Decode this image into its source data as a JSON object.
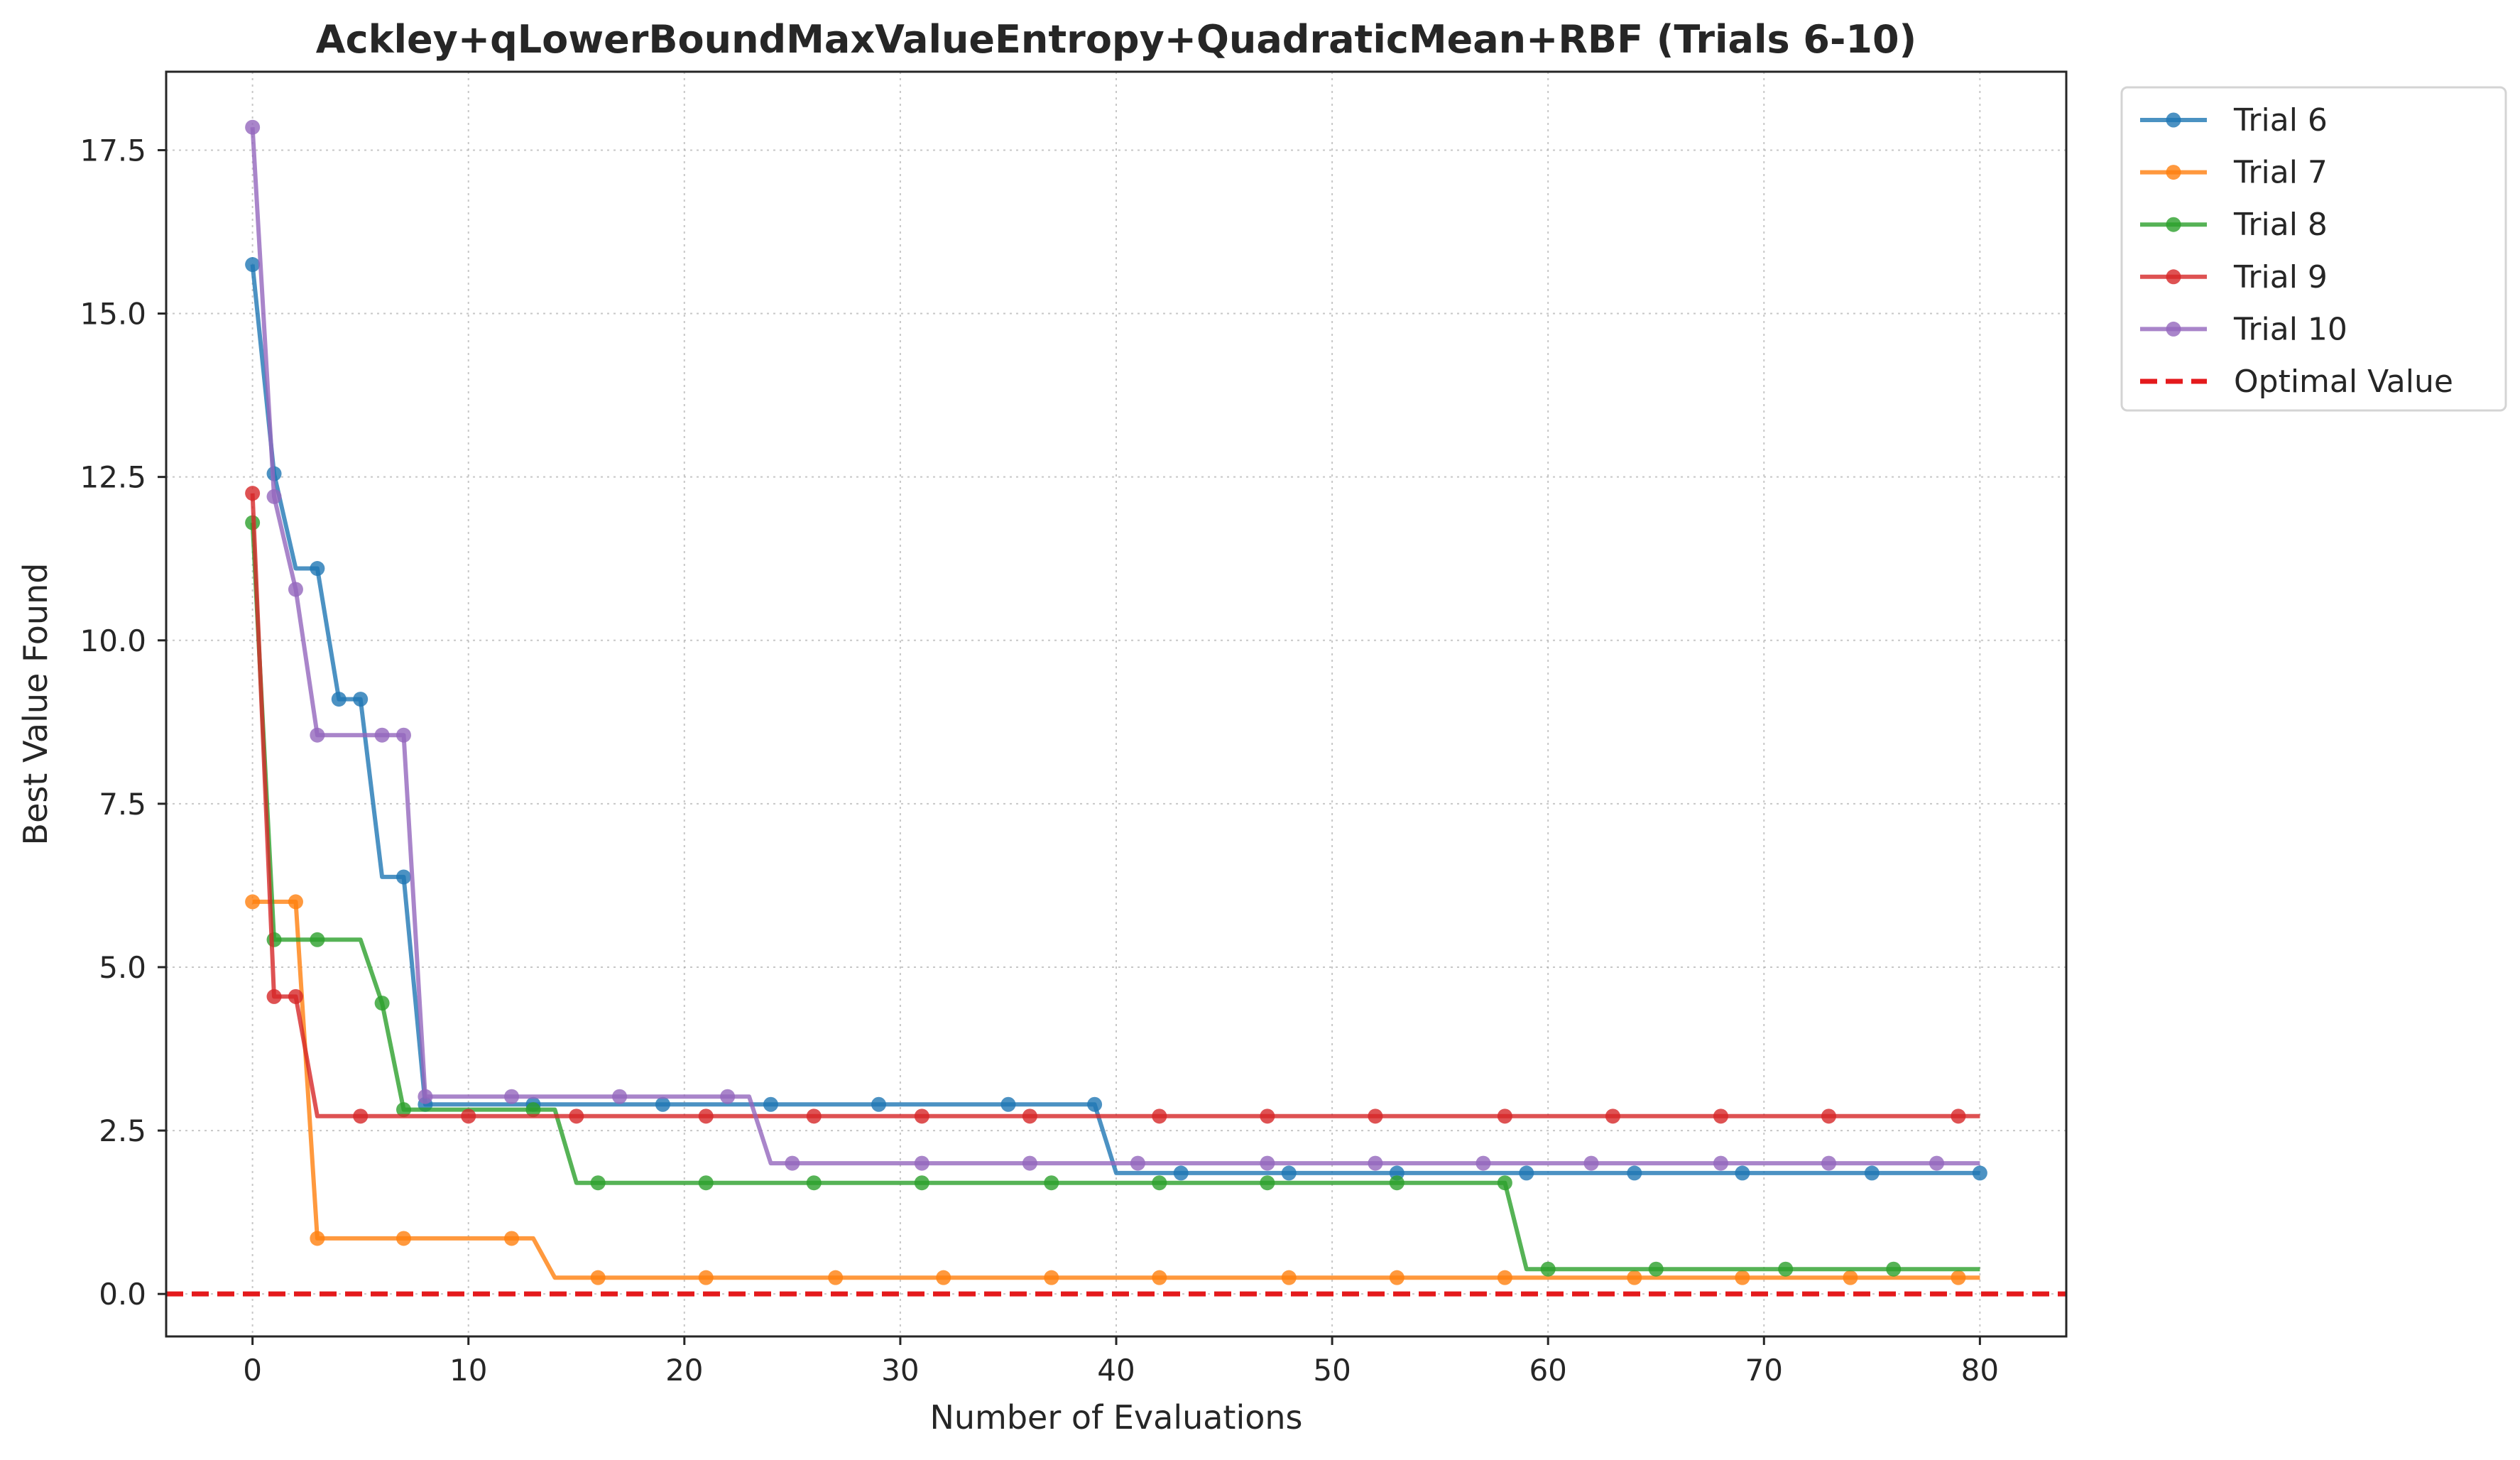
{
  "chart_data": {
    "type": "line",
    "title": "Ackley+qLowerBoundMaxValueEntropy+QuadraticMean+RBF (Trials 6-10)",
    "xlabel": "Number of Evaluations",
    "ylabel": "Best Value Found",
    "xlim": [
      -4,
      84
    ],
    "ylim": [
      -0.65,
      18.7
    ],
    "xticks": [
      0,
      10,
      20,
      30,
      40,
      50,
      60,
      70,
      80
    ],
    "xtick_labels": [
      "0",
      "10",
      "20",
      "30",
      "40",
      "50",
      "60",
      "70",
      "80"
    ],
    "yticks": [
      0,
      2.5,
      5,
      7.5,
      10,
      12.5,
      15,
      17.5
    ],
    "ytick_labels": [
      "0.0",
      "2.5",
      "5.0",
      "7.5",
      "10.0",
      "12.5",
      "15.0",
      "17.5"
    ],
    "grid": true,
    "legend_position": "outside-top-right",
    "optimal_value": {
      "name": "Optimal Value",
      "y": 0,
      "color": "#e41a1c"
    },
    "series": [
      {
        "name": "Trial 6",
        "color": "#1f77b4",
        "x": [
          0,
          1,
          2,
          3,
          4,
          5,
          6,
          7,
          8,
          39,
          40,
          80
        ],
        "y": [
          15.75,
          12.55,
          11.1,
          11.1,
          9.1,
          9.1,
          6.38,
          6.38,
          2.9,
          2.9,
          1.85,
          1.85
        ],
        "markers_x": [
          0,
          1,
          3,
          4,
          5,
          7,
          8,
          13,
          19,
          24,
          29,
          35,
          39,
          43,
          48,
          53,
          59,
          64,
          69,
          75,
          80
        ]
      },
      {
        "name": "Trial 7",
        "color": "#ff7f0e",
        "x": [
          0,
          2,
          3,
          13,
          14,
          80
        ],
        "y": [
          6.0,
          6.0,
          0.85,
          0.85,
          0.25,
          0.25
        ],
        "markers_x": [
          0,
          2,
          3,
          7,
          12,
          16,
          21,
          27,
          32,
          37,
          42,
          48,
          53,
          58,
          64,
          69,
          74,
          79
        ]
      },
      {
        "name": "Trial 8",
        "color": "#2ca02c",
        "x": [
          0,
          1,
          5,
          6,
          7,
          14,
          15,
          58,
          59,
          80
        ],
        "y": [
          11.8,
          5.42,
          5.42,
          4.45,
          2.82,
          2.82,
          1.7,
          1.7,
          0.38,
          0.38
        ],
        "markers_x": [
          0,
          1,
          3,
          6,
          7,
          13,
          16,
          21,
          26,
          31,
          37,
          42,
          47,
          53,
          58,
          60,
          65,
          71,
          76
        ]
      },
      {
        "name": "Trial 9",
        "color": "#d62728",
        "x": [
          0,
          1,
          2,
          3,
          80
        ],
        "y": [
          12.25,
          4.55,
          4.55,
          2.72,
          2.72
        ],
        "markers_x": [
          0,
          1,
          2,
          5,
          10,
          15,
          21,
          26,
          31,
          36,
          42,
          47,
          52,
          58,
          63,
          68,
          73,
          79
        ]
      },
      {
        "name": "Trial 10",
        "color": "#9467bd",
        "x": [
          0,
          1,
          2,
          3,
          7,
          8,
          23,
          24,
          80
        ],
        "y": [
          17.85,
          12.2,
          10.78,
          8.55,
          8.55,
          3.02,
          3.02,
          2.0,
          2.0
        ],
        "markers_x": [
          0,
          1,
          2,
          3,
          6,
          7,
          8,
          12,
          17,
          22,
          25,
          31,
          36,
          41,
          47,
          52,
          57,
          62,
          68,
          73,
          78
        ]
      }
    ]
  }
}
